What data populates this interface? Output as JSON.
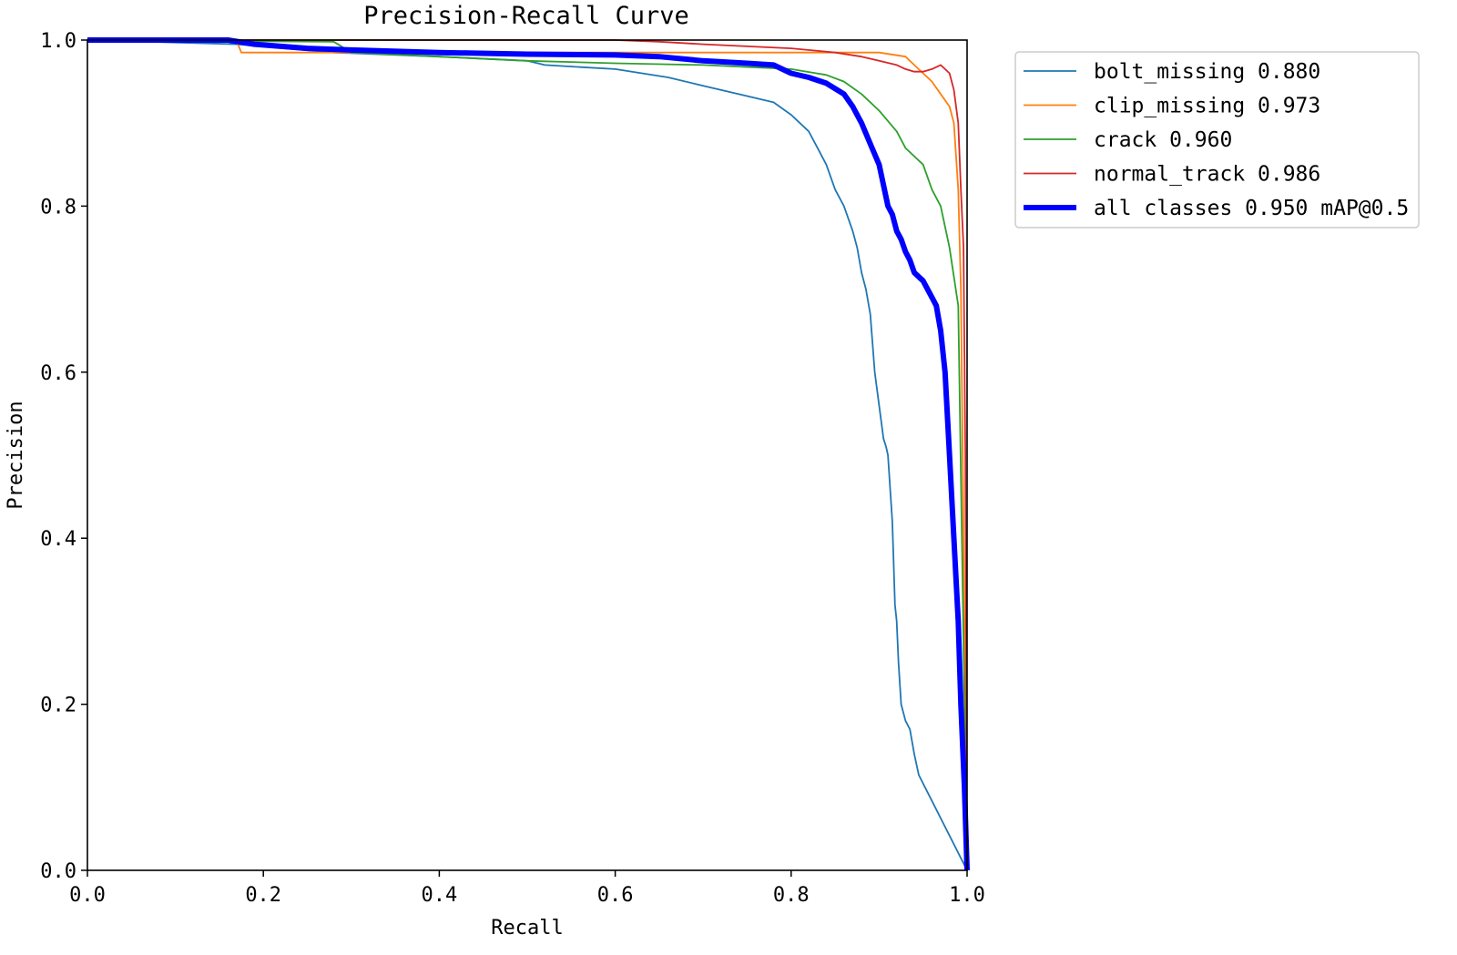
{
  "chart_data": {
    "type": "line",
    "title": "Precision-Recall Curve",
    "xlabel": "Recall",
    "ylabel": "Precision",
    "xlim": [
      0,
      1
    ],
    "ylim": [
      0,
      1
    ],
    "xticks": [
      "0.0",
      "0.2",
      "0.4",
      "0.6",
      "0.8",
      "1.0"
    ],
    "yticks": [
      "0.0",
      "0.2",
      "0.4",
      "0.6",
      "0.8",
      "1.0"
    ],
    "grid": false,
    "legend_position": "outside-top-right",
    "series": [
      {
        "name": "bolt_missing",
        "legend_label": "bolt_missing 0.880",
        "color": "#1f77b4",
        "x": [
          0.0,
          0.17,
          0.28,
          0.4,
          0.5,
          0.52,
          0.6,
          0.66,
          0.7,
          0.74,
          0.78,
          0.8,
          0.82,
          0.83,
          0.84,
          0.85,
          0.86,
          0.87,
          0.875,
          0.88,
          0.885,
          0.89,
          0.895,
          0.9,
          0.905,
          0.908,
          0.91,
          0.915,
          0.918,
          0.92,
          0.922,
          0.925,
          0.93,
          0.935,
          0.94,
          0.945,
          1.0
        ],
        "y": [
          1.0,
          0.995,
          0.985,
          0.98,
          0.975,
          0.97,
          0.965,
          0.955,
          0.945,
          0.935,
          0.925,
          0.91,
          0.89,
          0.87,
          0.85,
          0.82,
          0.8,
          0.77,
          0.75,
          0.72,
          0.7,
          0.67,
          0.6,
          0.56,
          0.52,
          0.51,
          0.5,
          0.42,
          0.32,
          0.3,
          0.25,
          0.2,
          0.18,
          0.17,
          0.14,
          0.115,
          0.0
        ]
      },
      {
        "name": "clip_missing",
        "legend_label": "clip_missing 0.973",
        "color": "#ff7f0e",
        "x": [
          0.0,
          0.17,
          0.175,
          0.3,
          0.4,
          0.5,
          0.6,
          0.7,
          0.8,
          0.9,
          0.93,
          0.94,
          0.95,
          0.96,
          0.97,
          0.98,
          0.985,
          0.99,
          0.993,
          1.0
        ],
        "y": [
          1.0,
          0.998,
          0.985,
          0.985,
          0.985,
          0.985,
          0.985,
          0.985,
          0.985,
          0.985,
          0.98,
          0.97,
          0.96,
          0.95,
          0.935,
          0.92,
          0.9,
          0.82,
          0.7,
          0.0
        ]
      },
      {
        "name": "crack",
        "legend_label": "crack 0.960",
        "color": "#2ca02c",
        "x": [
          0.0,
          0.28,
          0.3,
          0.4,
          0.5,
          0.6,
          0.7,
          0.8,
          0.84,
          0.86,
          0.88,
          0.9,
          0.92,
          0.93,
          0.95,
          0.96,
          0.97,
          0.98,
          0.99,
          1.0
        ],
        "y": [
          1.0,
          0.998,
          0.985,
          0.98,
          0.975,
          0.972,
          0.97,
          0.965,
          0.958,
          0.95,
          0.935,
          0.915,
          0.89,
          0.87,
          0.85,
          0.82,
          0.8,
          0.75,
          0.68,
          0.0
        ]
      },
      {
        "name": "normal_track",
        "legend_label": "normal_track 0.986",
        "color": "#d62728",
        "x": [
          0.0,
          0.6,
          0.65,
          0.7,
          0.8,
          0.85,
          0.88,
          0.9,
          0.92,
          0.93,
          0.94,
          0.95,
          0.96,
          0.97,
          0.98,
          0.985,
          0.99,
          0.993,
          0.996,
          0.998,
          1.0
        ],
        "y": [
          1.0,
          1.0,
          0.998,
          0.995,
          0.99,
          0.985,
          0.98,
          0.975,
          0.97,
          0.965,
          0.962,
          0.962,
          0.965,
          0.97,
          0.96,
          0.94,
          0.9,
          0.82,
          0.75,
          0.5,
          0.0
        ]
      },
      {
        "name": "all classes",
        "legend_label": "all classes 0.950 mAP@0.5",
        "color": "#0000ff",
        "bold": true,
        "x": [
          0.0,
          0.16,
          0.19,
          0.25,
          0.3,
          0.4,
          0.5,
          0.6,
          0.65,
          0.7,
          0.75,
          0.78,
          0.8,
          0.82,
          0.84,
          0.86,
          0.87,
          0.88,
          0.89,
          0.9,
          0.91,
          0.915,
          0.92,
          0.925,
          0.93,
          0.935,
          0.94,
          0.95,
          0.96,
          0.965,
          0.97,
          0.975,
          0.98,
          0.985,
          0.99,
          0.993,
          0.997,
          1.0
        ],
        "y": [
          1.0,
          1.0,
          0.995,
          0.99,
          0.988,
          0.985,
          0.983,
          0.982,
          0.98,
          0.975,
          0.972,
          0.97,
          0.96,
          0.955,
          0.948,
          0.935,
          0.92,
          0.9,
          0.875,
          0.85,
          0.8,
          0.79,
          0.77,
          0.76,
          0.745,
          0.735,
          0.72,
          0.71,
          0.69,
          0.68,
          0.65,
          0.6,
          0.5,
          0.4,
          0.3,
          0.2,
          0.1,
          0.0
        ]
      }
    ]
  }
}
